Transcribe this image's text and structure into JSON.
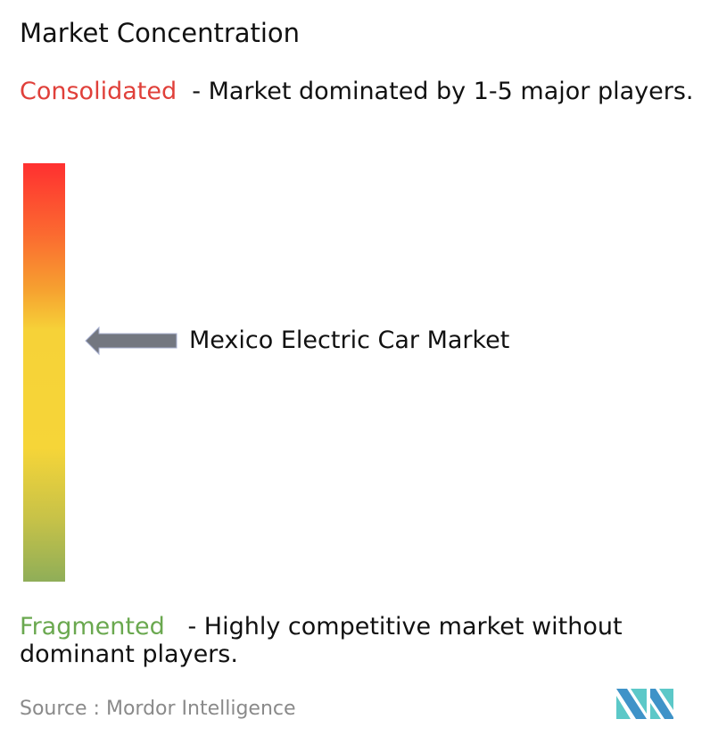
{
  "title": "Market Concentration",
  "consolidated": {
    "label": "Consolidated",
    "description": "- Market dominated by 1-5 major players.",
    "color": "#e0403a"
  },
  "fragmented": {
    "label": "Fragmented",
    "description": "- Highly competitive market without dominant players.",
    "color": "#6aa84f"
  },
  "scale": {
    "colors": [
      "#ff3030",
      "#f6a030",
      "#f6d538",
      "#8fae58"
    ],
    "market_position": "moderately consolidated"
  },
  "marker": {
    "label": "Mexico Electric Car Market",
    "icon": "arrow-left-icon",
    "color": "#737780"
  },
  "source": {
    "label": "Source :",
    "name": "Mordor Intelligence"
  },
  "logo": {
    "text": "Mordor Intelligence logo"
  }
}
